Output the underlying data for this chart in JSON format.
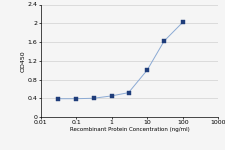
{
  "x": [
    0.031,
    0.1,
    0.31,
    1.0,
    3.0,
    10.0,
    30.0,
    100.0
  ],
  "y": [
    0.39,
    0.39,
    0.4,
    0.45,
    0.52,
    1.0,
    1.62,
    2.02
  ],
  "xlim": [
    0.01,
    1000
  ],
  "ylim": [
    0,
    2.4
  ],
  "yticks": [
    0,
    0.4,
    0.8,
    1.2,
    1.6,
    2.0,
    2.4
  ],
  "ytick_labels": [
    "0",
    "0.4",
    "0.8",
    "1.2",
    "1.6",
    "2",
    "2.4"
  ],
  "xtick_vals": [
    0.01,
    0.1,
    1,
    10,
    100,
    1000
  ],
  "xtick_labels": [
    "0.01",
    "0.1",
    "1",
    "10",
    "100",
    "1000"
  ],
  "xlabel": "Recombinant Protein Concentration (ng/ml)",
  "ylabel": "OD450",
  "line_color": "#8baad4",
  "marker_color": "#1f3d7a",
  "background_color": "#f5f5f5",
  "grid_color": "#d0d0d0"
}
